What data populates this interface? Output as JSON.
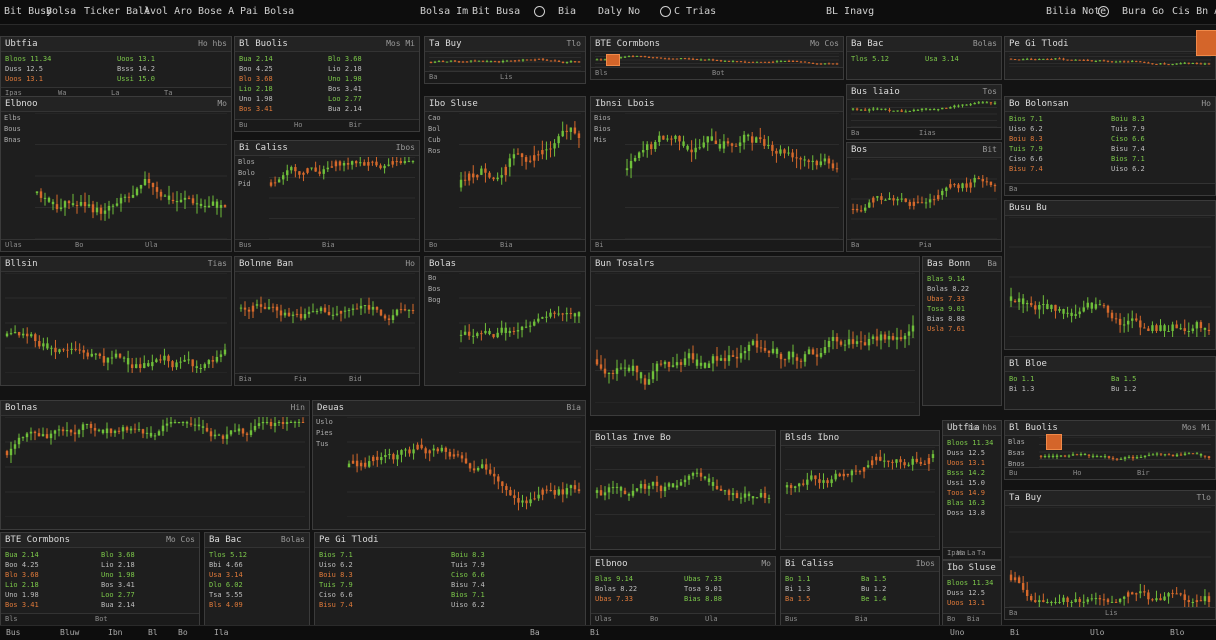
{
  "topbar": {
    "items": [
      "Bit Busy",
      "Bolsa",
      "Ticker Ball",
      "Avol Aro",
      "Bose A",
      "Pai Bolsa",
      "Bolsa Im",
      "Bit Busa",
      "Bia",
      "Daly No",
      "C Trias",
      "BL Inavg",
      "Bilia Note",
      "Bura Go",
      "Cis Bn An"
    ]
  },
  "accent": "#d4652a",
  "green": "#6fbf3a",
  "orange": "#d6692b",
  "panels": [
    {
      "title": "Ubtfia",
      "right": "Ho hbs",
      "side": [
        "Bllos",
        "Ustis",
        "Uotis",
        "Tlodi"
      ],
      "foot": [
        "Ipas",
        "Wa",
        "La",
        "Ta"
      ]
    },
    {
      "title": "Bl Buolis",
      "right": "Mos Mi",
      "side": [
        "Blas",
        "Bsas",
        "Bnos",
        "Lubs"
      ],
      "foot": [
        "Bu",
        "Ho",
        "Bir"
      ]
    },
    {
      "title": "Ta Buy",
      "right": "Tlo",
      "side": [],
      "foot": [
        "Ba",
        "Lis"
      ]
    },
    {
      "title": "BTE Cormbons",
      "right": "Mo Cos",
      "side": [],
      "foot": [
        "Bls",
        "Bot"
      ]
    },
    {
      "title": "Ba Bac",
      "right": "Bolas",
      "side": [],
      "foot": []
    },
    {
      "title": "Pe Gi Tlodi",
      "right": "",
      "side": [],
      "foot": []
    },
    {
      "title": "Elbnoo",
      "right": "Mo",
      "side": [
        "Elbs",
        "Bous",
        "Bnas"
      ],
      "foot": [
        "Ulas",
        "Bo",
        "Ula"
      ]
    },
    {
      "title": "Bi Caliss",
      "right": "Ibos",
      "side": [
        "Blos",
        "Bolo",
        "Pid"
      ],
      "foot": [
        "Bus",
        "Bia"
      ]
    },
    {
      "title": "Ibo Sluse",
      "right": "",
      "side": [
        "Cao",
        "Bol",
        "Cub",
        "Ros"
      ],
      "foot": [
        "Bo",
        "Bia"
      ]
    },
    {
      "title": "Ibnsi Lbois",
      "right": "",
      "side": [
        "Bios",
        "Bios",
        "Mis"
      ],
      "foot": [
        "Bi"
      ]
    },
    {
      "title": "Bus liaio",
      "right": "Tos",
      "side": [],
      "foot": [
        "Ba",
        "Iias"
      ]
    },
    {
      "title": "Bos",
      "right": "Bit",
      "side": [],
      "foot": [
        "Ba",
        "Pia"
      ]
    },
    {
      "title": "Bo Bolonsan",
      "right": "Ho",
      "side": [
        "Tla",
        "Bla",
        "Mas",
        "Cas",
        "Bl"
      ],
      "foot": [
        "Ba"
      ]
    },
    {
      "title": "Busu Bu",
      "right": "",
      "side": [],
      "foot": []
    },
    {
      "title": "Bllsin",
      "right": "Tias",
      "side": [],
      "foot": []
    },
    {
      "title": "Bolnne Ban",
      "right": "Ho",
      "side": [],
      "foot": [
        "Bia",
        "Fia",
        "Bid"
      ]
    },
    {
      "title": "Bolas",
      "right": "",
      "side": [
        "Bo",
        "Bos",
        "Bog"
      ],
      "foot": []
    },
    {
      "title": "Bun Tosalrs",
      "right": "",
      "side": [],
      "foot": []
    },
    {
      "title": "Bas Bonn",
      "right": "Ba",
      "side": [],
      "foot": []
    },
    {
      "title": "Bolnas",
      "right": "Hin",
      "side": [],
      "foot": []
    },
    {
      "title": "Deuas",
      "right": "Bia",
      "side": [
        "Uslo",
        "Pies",
        "Tus"
      ],
      "foot": []
    },
    {
      "title": "Bollas Inve Bo",
      "right": "",
      "side": [],
      "foot": []
    },
    {
      "title": "Blsds Ibno",
      "right": "",
      "side": [],
      "foot": []
    },
    {
      "title": "Bl Bloe",
      "right": "",
      "side": [],
      "foot": []
    }
  ],
  "tables": [
    {
      "rows": [
        "Bloos  11.34",
        "Duss  12.5",
        "Uoos  13.1",
        "Bsss  14.2",
        "Ussi  15.0",
        "Toos  14.9",
        "Blas  16.3",
        "Doss  13.8"
      ]
    },
    {
      "rows": [
        "Bua  2.14",
        "Boo  4.25",
        "Blo  3.68",
        "Lio  2.18",
        "Uno  1.98",
        "Bos  3.41",
        "Loo  2.77"
      ]
    },
    {
      "rows": [
        "Tlos  5.12",
        "Bbi  4.66",
        "Usa  3.14",
        "Dlo  6.02",
        "Tsa  5.55",
        "Bls  4.09",
        "Ulo  3.87"
      ]
    },
    {
      "rows": [
        "Bios  7.1",
        "Uiso  6.2",
        "Boiu  8.3",
        "Tuis  7.9",
        "Ciso  6.6",
        "Bisu  7.4"
      ]
    },
    {
      "rows": [
        "Blas  9.14",
        "Bolas  8.22",
        "Ubas  7.33",
        "Tosa  9.01",
        "Bias  8.88",
        "Usla  7.61"
      ]
    },
    {
      "rows": [
        "Bo  1.1",
        "Bi  1.3",
        "Ba  1.5",
        "Bu  1.2",
        "Be  1.4",
        "By  1.6"
      ]
    }
  ],
  "status": {
    "items": [
      "Bus",
      "Bluw",
      "Ibn",
      "Bl",
      "Bo",
      "Ila",
      "Ba",
      "Bi",
      "Uno",
      "Bi",
      "Ulo",
      "Blo"
    ]
  }
}
